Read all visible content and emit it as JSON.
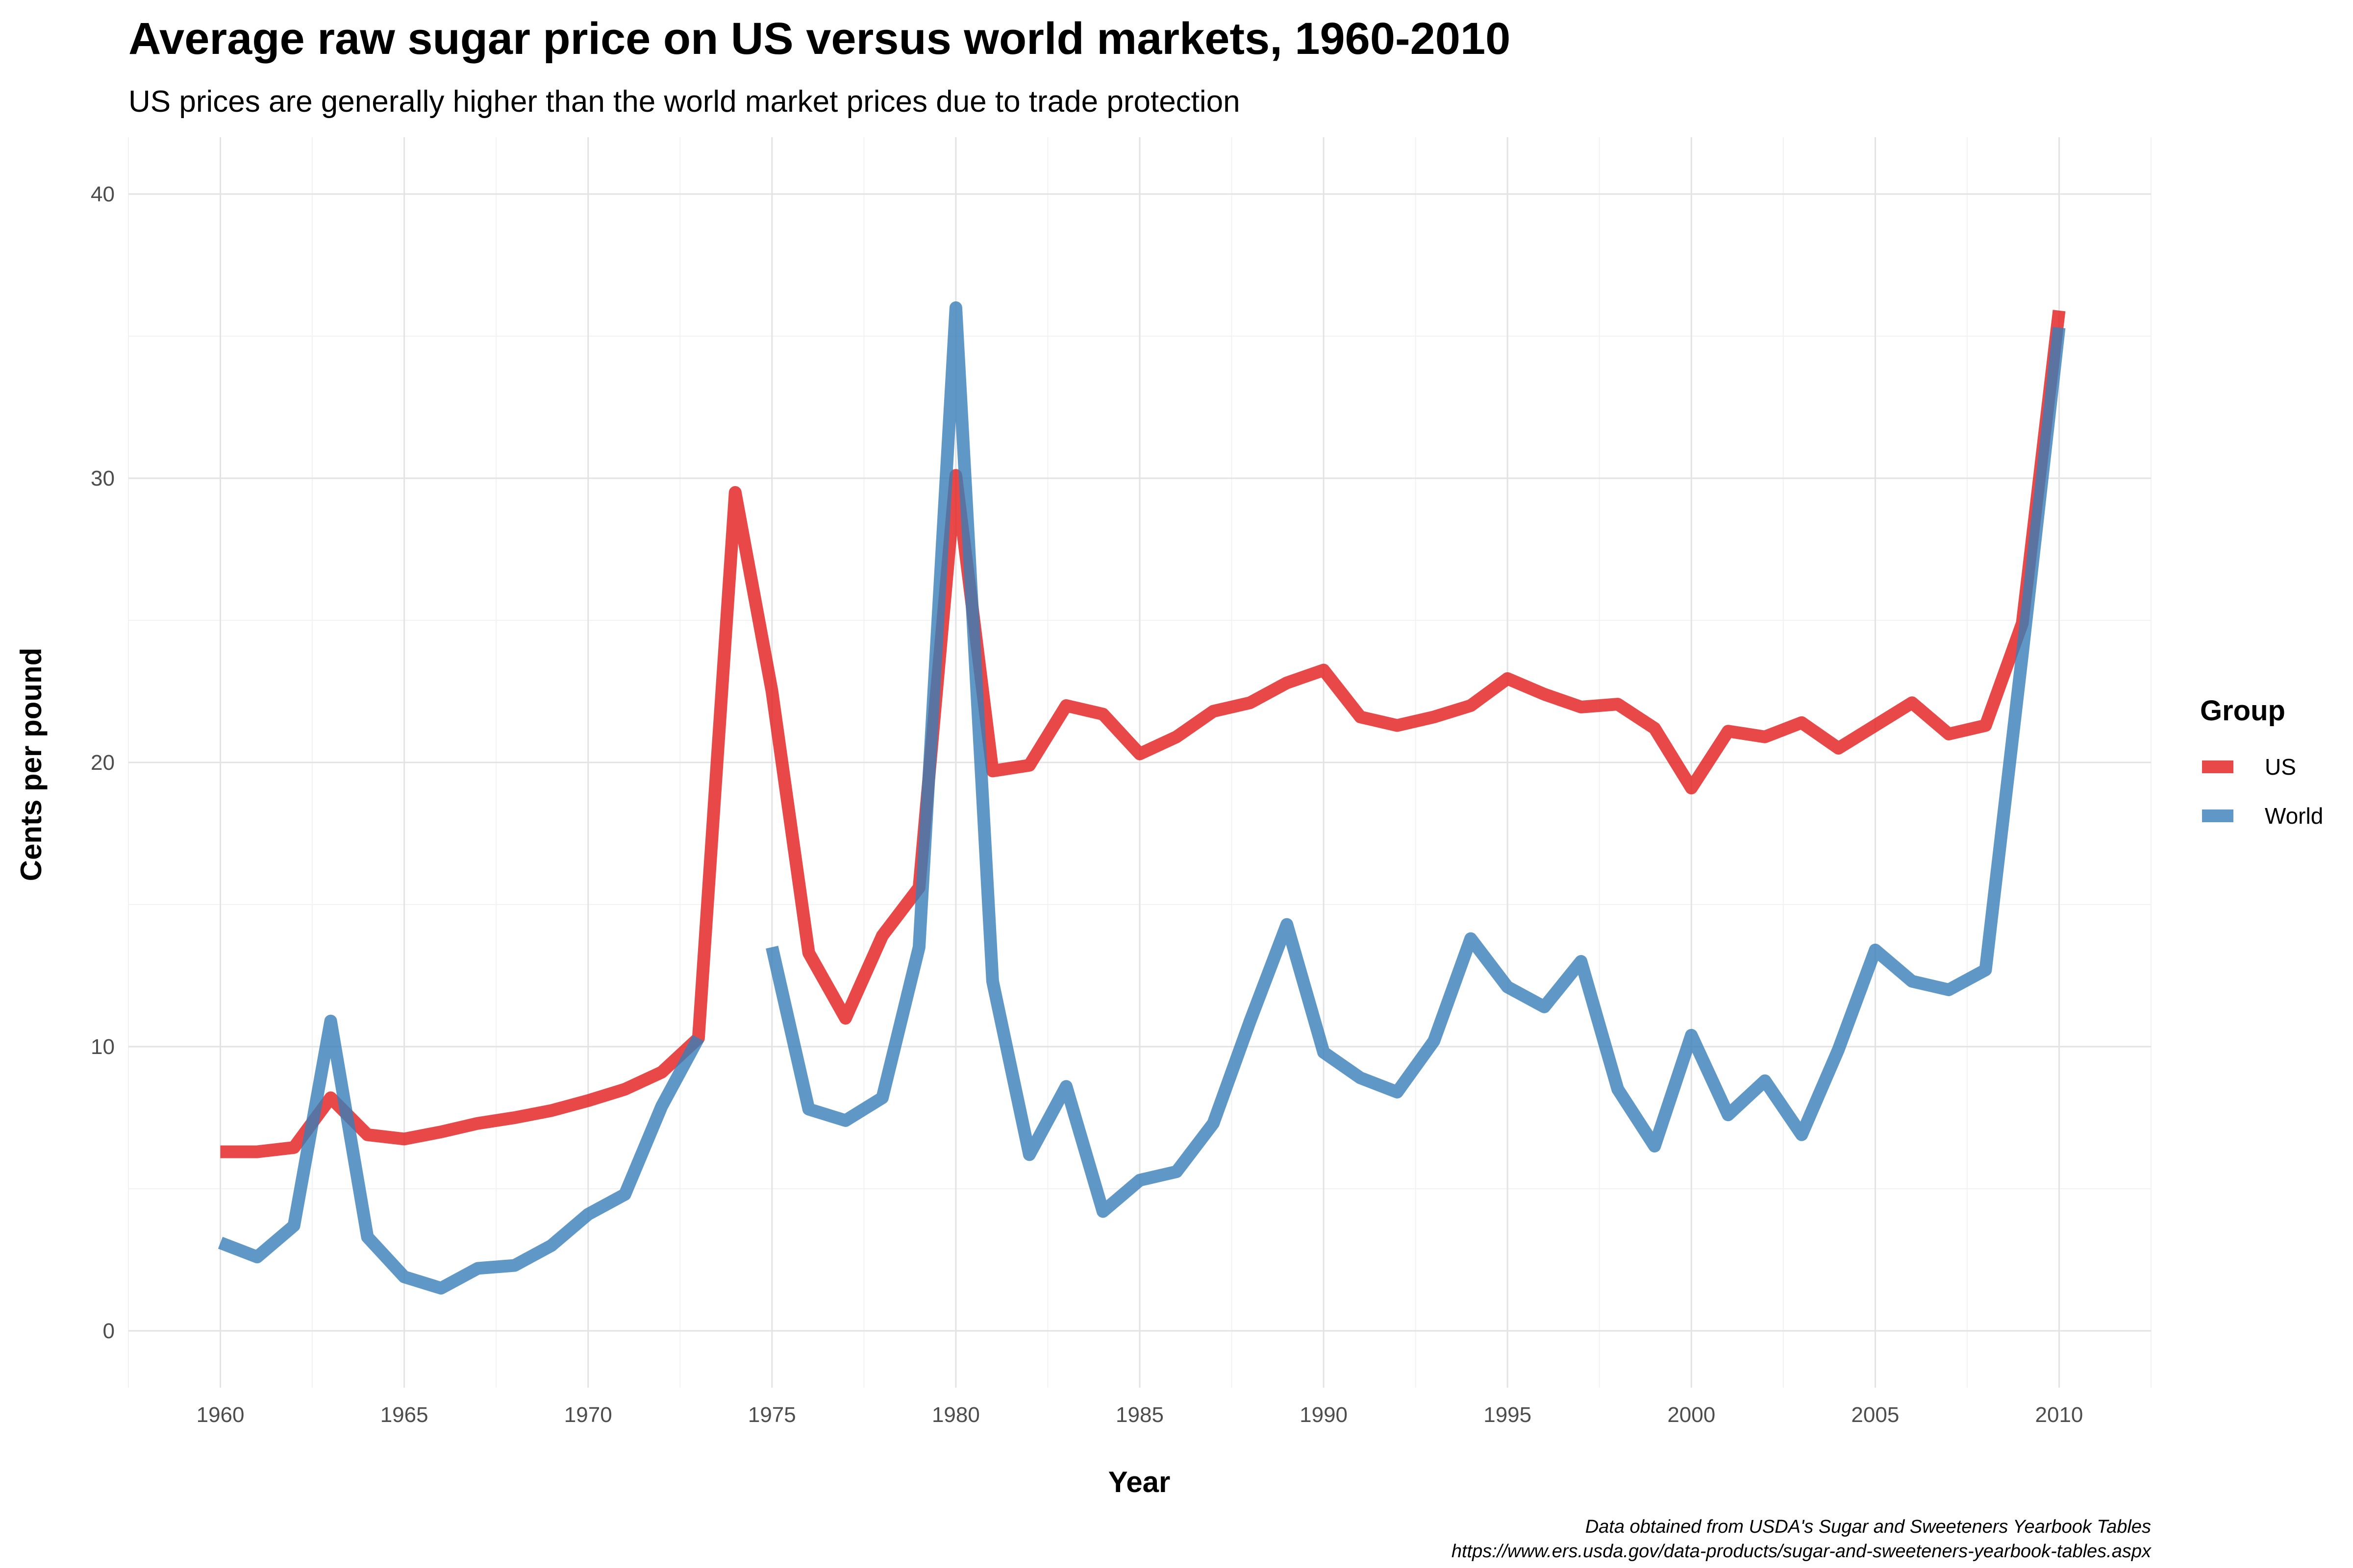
{
  "chart_data": {
    "type": "line",
    "title": "Average raw sugar price on US versus world markets, 1960-2010",
    "subtitle": "US prices are generally higher than the world market prices due to trade protection",
    "xlabel": "Year",
    "ylabel": "Cents per pound",
    "xlim": [
      1957.5,
      2012.5
    ],
    "ylim": [
      -2,
      42
    ],
    "x_ticks": [
      1960,
      1965,
      1970,
      1975,
      1980,
      1985,
      1990,
      1995,
      2000,
      2005,
      2010
    ],
    "y_ticks": [
      0,
      10,
      20,
      30,
      40
    ],
    "grid": true,
    "legend": {
      "title": "Group",
      "position": "right"
    },
    "caption": [
      "Data obtained from USDA's Sugar and Sweeteners Yearbook Tables",
      "https://www.ers.usda.gov/data-products/sugar-and-sweeteners-yearbook-tables.aspx"
    ],
    "series": [
      {
        "name": "US",
        "color": "#e41a1c",
        "points": [
          [
            1960,
            6.3
          ],
          [
            1961,
            6.3
          ],
          [
            1962,
            6.45
          ],
          [
            1963,
            8.2
          ],
          [
            1964,
            6.9
          ],
          [
            1965,
            6.75
          ],
          [
            1966,
            7.0
          ],
          [
            1967,
            7.3
          ],
          [
            1968,
            7.5
          ],
          [
            1969,
            7.75
          ],
          [
            1970,
            8.1
          ],
          [
            1971,
            8.5
          ],
          [
            1972,
            9.1
          ],
          [
            1973,
            10.3
          ],
          [
            1974,
            29.5
          ],
          [
            1975,
            22.5
          ],
          [
            1976,
            13.3
          ],
          [
            1977,
            11.0
          ],
          [
            1978,
            13.9
          ],
          [
            1979,
            15.6
          ],
          [
            1980,
            30.1
          ],
          [
            1981,
            19.7
          ],
          [
            1982,
            19.9
          ],
          [
            1983,
            22.0
          ],
          [
            1984,
            21.7
          ],
          [
            1985,
            20.3
          ],
          [
            1986,
            20.9
          ],
          [
            1987,
            21.8
          ],
          [
            1988,
            22.1
          ],
          [
            1989,
            22.8
          ],
          [
            1990,
            23.25
          ],
          [
            1991,
            21.6
          ],
          [
            1992,
            21.3
          ],
          [
            1993,
            21.6
          ],
          [
            1994,
            22.0
          ],
          [
            1995,
            22.95
          ],
          [
            1996,
            22.4
          ],
          [
            1997,
            21.95
          ],
          [
            1998,
            22.05
          ],
          [
            1999,
            21.2
          ],
          [
            2000,
            19.1
          ],
          [
            2001,
            21.1
          ],
          [
            2002,
            20.9
          ],
          [
            2003,
            21.4
          ],
          [
            2004,
            20.5
          ],
          [
            2005,
            21.3
          ],
          [
            2006,
            22.1
          ],
          [
            2007,
            21.0
          ],
          [
            2008,
            21.3
          ],
          [
            2009,
            24.9
          ],
          [
            2010,
            35.9
          ]
        ]
      },
      {
        "name": "World",
        "color": "#377eb8",
        "points": [
          [
            1960,
            3.1
          ],
          [
            1961,
            2.6
          ],
          [
            1962,
            3.7
          ],
          [
            1963,
            10.9
          ],
          [
            1964,
            3.3
          ],
          [
            1965,
            1.9
          ],
          [
            1966,
            1.5
          ],
          [
            1967,
            2.2
          ],
          [
            1968,
            2.3
          ],
          [
            1969,
            3.0
          ],
          [
            1970,
            4.1
          ],
          [
            1971,
            4.8
          ],
          [
            1972,
            7.9
          ],
          [
            1973,
            10.3
          ],
          [
            1974,
            null
          ],
          [
            1975,
            13.5
          ],
          [
            1976,
            7.8
          ],
          [
            1977,
            7.4
          ],
          [
            1978,
            8.2
          ],
          [
            1979,
            13.5
          ],
          [
            1980,
            36.0
          ],
          [
            1981,
            12.3
          ],
          [
            1982,
            6.2
          ],
          [
            1983,
            8.6
          ],
          [
            1984,
            4.2
          ],
          [
            1985,
            5.3
          ],
          [
            1986,
            5.6
          ],
          [
            1987,
            7.3
          ],
          [
            1988,
            10.9
          ],
          [
            1989,
            14.3
          ],
          [
            1990,
            9.8
          ],
          [
            1991,
            8.9
          ],
          [
            1992,
            8.4
          ],
          [
            1993,
            10.2
          ],
          [
            1994,
            13.8
          ],
          [
            1995,
            12.1
          ],
          [
            1996,
            11.4
          ],
          [
            1997,
            13.0
          ],
          [
            1998,
            8.5
          ],
          [
            1999,
            6.5
          ],
          [
            2000,
            10.4
          ],
          [
            2001,
            7.6
          ],
          [
            2002,
            8.8
          ],
          [
            2003,
            6.9
          ],
          [
            2004,
            9.9
          ],
          [
            2005,
            13.4
          ],
          [
            2006,
            12.3
          ],
          [
            2007,
            12.0
          ],
          [
            2008,
            12.7
          ],
          [
            2009,
            23.8
          ],
          [
            2010,
            35.3
          ]
        ]
      }
    ]
  }
}
